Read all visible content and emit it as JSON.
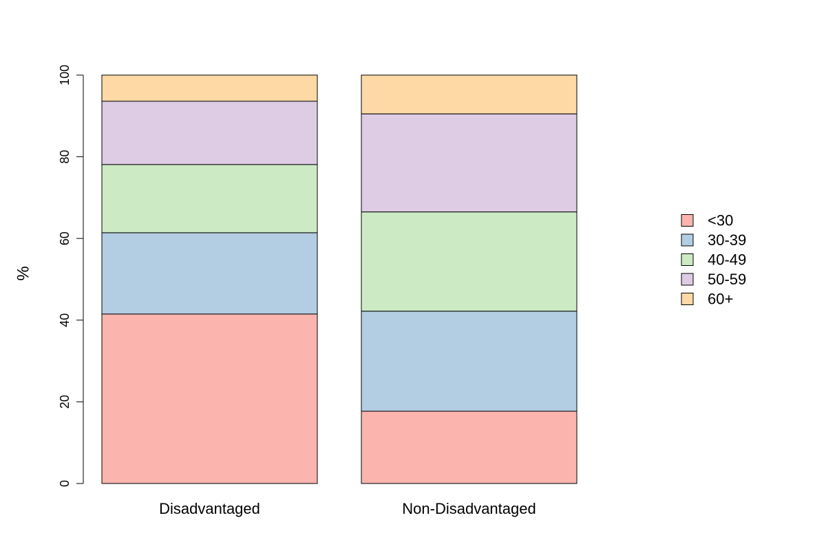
{
  "chart_data": {
    "type": "bar",
    "stacked": true,
    "title": "",
    "xlabel": "",
    "ylabel": "%",
    "ylim": [
      0,
      100
    ],
    "yticks": [
      "0",
      "20",
      "40",
      "60",
      "80",
      "100"
    ],
    "grid": false,
    "legend_position": "right",
    "categories": [
      "Disadvantaged",
      "Non-Disadvantaged"
    ],
    "series": [
      {
        "name": "<30",
        "color": "#FBB4AE",
        "values": [
          41.5,
          17.7
        ]
      },
      {
        "name": "30-39",
        "color": "#B3CDE3",
        "values": [
          19.9,
          24.5
        ]
      },
      {
        "name": "40-49",
        "color": "#CCEBC5",
        "values": [
          16.7,
          24.3
        ]
      },
      {
        "name": "50-59",
        "color": "#DECBE4",
        "values": [
          15.5,
          24.0
        ]
      },
      {
        "name": "60+",
        "color": "#FED9A6",
        "values": [
          6.4,
          9.5
        ]
      }
    ]
  }
}
